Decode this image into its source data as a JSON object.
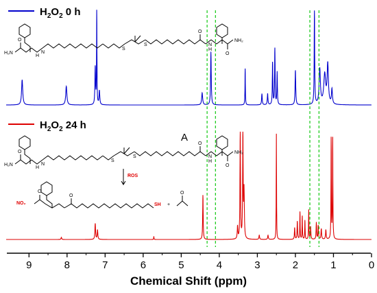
{
  "chart_data": {
    "type": "line",
    "xlabel": "Chemical Shift (ppm)",
    "xlim": [
      9.6,
      0
    ],
    "x_ticks": [
      9,
      8,
      7,
      6,
      5,
      4,
      3,
      2,
      1,
      0
    ],
    "annotation": "A",
    "guide_lines_ppm": [
      4.32,
      4.1,
      1.62,
      1.38
    ],
    "series": [
      {
        "name_parts": [
          "H",
          "2",
          "O",
          "2",
          " 0 h"
        ],
        "color": "#0000cc",
        "peaks": [
          {
            "ppm": 9.18,
            "height": 0.27,
            "width": 0.018
          },
          {
            "ppm": 8.02,
            "height": 0.2,
            "width": 0.018
          },
          {
            "ppm": 7.22,
            "height": 1.0,
            "width": 0.006
          },
          {
            "ppm": 7.26,
            "height": 0.4,
            "width": 0.01
          },
          {
            "ppm": 7.15,
            "height": 0.15,
            "width": 0.012
          },
          {
            "ppm": 4.45,
            "height": 0.13,
            "width": 0.015
          },
          {
            "ppm": 4.22,
            "height": 0.57,
            "width": 0.01
          },
          {
            "ppm": 3.32,
            "height": 0.39,
            "width": 0.006
          },
          {
            "ppm": 2.88,
            "height": 0.12,
            "width": 0.01
          },
          {
            "ppm": 2.73,
            "height": 0.12,
            "width": 0.01
          },
          {
            "ppm": 2.6,
            "height": 0.45,
            "width": 0.008
          },
          {
            "ppm": 2.54,
            "height": 0.6,
            "width": 0.008
          },
          {
            "ppm": 2.48,
            "height": 0.35,
            "width": 0.008
          },
          {
            "ppm": 2.0,
            "height": 0.37,
            "width": 0.01
          },
          {
            "ppm": 1.5,
            "height": 1.0,
            "width": 0.008
          },
          {
            "ppm": 1.36,
            "height": 0.38,
            "width": 0.02
          },
          {
            "ppm": 1.23,
            "height": 0.32,
            "width": 0.03
          },
          {
            "ppm": 1.15,
            "height": 0.42,
            "width": 0.02
          },
          {
            "ppm": 1.04,
            "height": 0.16,
            "width": 0.015
          }
        ]
      },
      {
        "name_parts": [
          "H",
          "2",
          "O",
          "2",
          " 24 h"
        ],
        "color": "#dd0000",
        "peaks": [
          {
            "ppm": 8.15,
            "height": 0.02,
            "width": 0.01
          },
          {
            "ppm": 7.26,
            "height": 0.15,
            "width": 0.01
          },
          {
            "ppm": 7.2,
            "height": 0.09,
            "width": 0.01
          },
          {
            "ppm": 5.72,
            "height": 0.03,
            "width": 0.005
          },
          {
            "ppm": 4.43,
            "height": 0.42,
            "width": 0.008
          },
          {
            "ppm": 3.52,
            "height": 0.12,
            "width": 0.01
          },
          {
            "ppm": 3.45,
            "height": 1.0,
            "width": 0.008
          },
          {
            "ppm": 3.38,
            "height": 1.0,
            "width": 0.008
          },
          {
            "ppm": 3.35,
            "height": 0.45,
            "width": 0.01
          },
          {
            "ppm": 2.95,
            "height": 0.04,
            "width": 0.01
          },
          {
            "ppm": 2.72,
            "height": 0.04,
            "width": 0.01
          },
          {
            "ppm": 2.5,
            "height": 1.0,
            "width": 0.005
          },
          {
            "ppm": 2.02,
            "height": 0.11,
            "width": 0.008
          },
          {
            "ppm": 1.95,
            "height": 0.17,
            "width": 0.008
          },
          {
            "ppm": 1.88,
            "height": 0.26,
            "width": 0.006
          },
          {
            "ppm": 1.82,
            "height": 0.22,
            "width": 0.006
          },
          {
            "ppm": 1.75,
            "height": 0.18,
            "width": 0.006
          },
          {
            "ppm": 1.65,
            "height": 0.28,
            "width": 0.006
          },
          {
            "ppm": 1.6,
            "height": 0.12,
            "width": 0.008
          },
          {
            "ppm": 1.45,
            "height": 0.16,
            "width": 0.008
          },
          {
            "ppm": 1.4,
            "height": 0.13,
            "width": 0.008
          },
          {
            "ppm": 1.32,
            "height": 0.1,
            "width": 0.01
          },
          {
            "ppm": 1.2,
            "height": 0.09,
            "width": 0.01
          },
          {
            "ppm": 1.06,
            "height": 0.95,
            "width": 0.006
          },
          {
            "ppm": 1.02,
            "height": 0.95,
            "width": 0.006
          }
        ]
      }
    ]
  },
  "structures": {
    "top": {
      "nh2_left": "H₂N",
      "nh2_right": "NH₂",
      "nh_1": "H",
      "nh_2": "H",
      "n_1": "N",
      "n_2": "N",
      "o": "O",
      "s": "S"
    },
    "bottom": {
      "nh2_left": "H₂N",
      "nh2_right": "NH₂",
      "nh_1": "H",
      "nh_2": "H",
      "n_1": "N",
      "n_2": "N",
      "o": "O",
      "s": "S",
      "reagent": "ROS",
      "product_no2": "NO₂",
      "product_sh": "SH",
      "plus": "+"
    }
  },
  "colors": {
    "guide": "#22cc22",
    "reaction_label": "#e00000",
    "axis": "#000000"
  }
}
